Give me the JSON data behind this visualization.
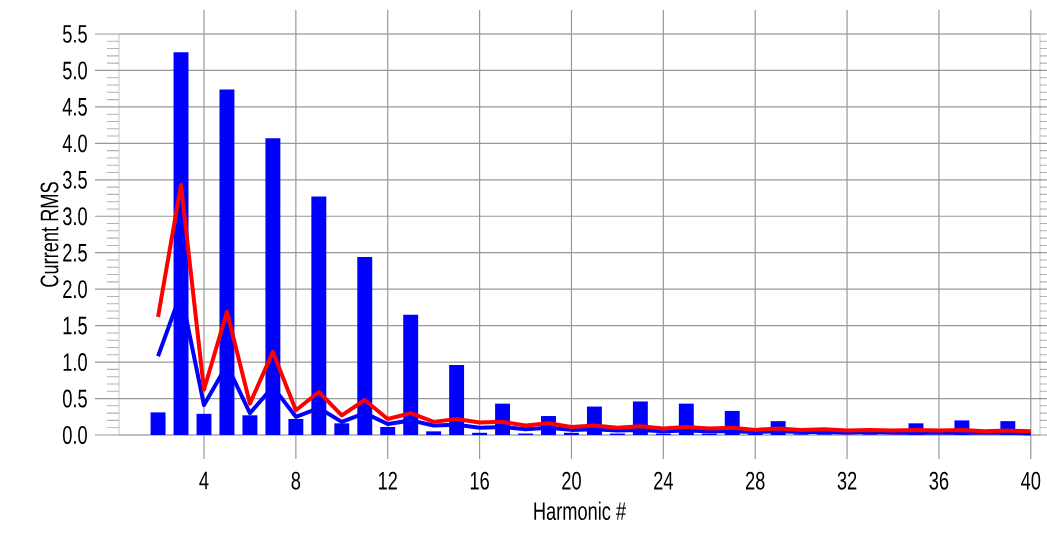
{
  "chart_data": {
    "type": "bar",
    "xlabel": "Harmonic #",
    "ylabel": "Current RMS",
    "x": [
      2,
      3,
      4,
      5,
      6,
      7,
      8,
      9,
      10,
      11,
      12,
      13,
      14,
      15,
      16,
      17,
      18,
      19,
      20,
      21,
      22,
      23,
      24,
      25,
      26,
      27,
      28,
      29,
      30,
      31,
      32,
      33,
      34,
      35,
      36,
      37,
      38,
      39,
      40
    ],
    "series": [
      {
        "color": "#0000ff",
        "values": [
          0.31,
          5.25,
          0.29,
          4.74,
          0.27,
          4.07,
          0.22,
          3.27,
          0.16,
          2.44,
          0.11,
          1.65,
          0.05,
          0.96,
          0.03,
          0.43,
          0.02,
          0.26,
          0.03,
          0.39,
          0.02,
          0.46,
          0.02,
          0.43,
          0.02,
          0.33,
          0.02,
          0.19,
          0.01,
          0.01,
          null,
          0.01,
          null,
          0.16,
          null,
          0.2,
          null,
          0.19,
          null
        ]
      },
      {
        "type": "line",
        "color": "#0000ff",
        "values": [
          1.08,
          1.95,
          0.41,
          0.96,
          0.3,
          0.66,
          0.25,
          0.37,
          0.18,
          0.3,
          0.15,
          0.2,
          0.13,
          0.14,
          0.1,
          0.11,
          0.08,
          0.1,
          0.07,
          0.08,
          0.06,
          0.07,
          0.05,
          0.06,
          0.05,
          0.05,
          0.04,
          0.05,
          0.04,
          0.04,
          0.03,
          0.04,
          0.03,
          0.03,
          0.03,
          0.03,
          0.03,
          0.03,
          0.02
        ]
      },
      {
        "type": "line",
        "color": "#ff0000",
        "values": [
          1.62,
          3.43,
          0.62,
          1.69,
          0.43,
          1.14,
          0.34,
          0.59,
          0.27,
          0.48,
          0.22,
          0.3,
          0.18,
          0.22,
          0.17,
          0.18,
          0.13,
          0.16,
          0.11,
          0.13,
          0.1,
          0.12,
          0.09,
          0.11,
          0.09,
          0.1,
          0.07,
          0.09,
          0.07,
          0.08,
          0.06,
          0.07,
          0.06,
          0.07,
          0.06,
          0.07,
          0.05,
          0.06,
          0.05
        ]
      }
    ],
    "xlim": [
      0.3,
      40.4
    ],
    "ylim": [
      0,
      5.5
    ],
    "xticks": [
      4,
      8,
      12,
      16,
      20,
      24,
      28,
      32,
      36,
      40
    ],
    "yticks": [
      {
        "value": 0,
        "label": "0.0"
      },
      {
        "value": 0.5,
        "label": "0.5"
      },
      {
        "value": 1,
        "label": "1.0"
      },
      {
        "value": 1.5,
        "label": "1.5"
      },
      {
        "value": 2,
        "label": "2.0"
      },
      {
        "value": 2.5,
        "label": "2.5"
      },
      {
        "value": 3,
        "label": "3.0"
      },
      {
        "value": 3.5,
        "label": "3.5"
      },
      {
        "value": 4,
        "label": "4.0"
      },
      {
        "value": 4.5,
        "label": "4.5"
      },
      {
        "value": 5,
        "label": "5.0"
      },
      {
        "value": 5.5,
        "label": "5.5"
      }
    ],
    "grid": true
  }
}
